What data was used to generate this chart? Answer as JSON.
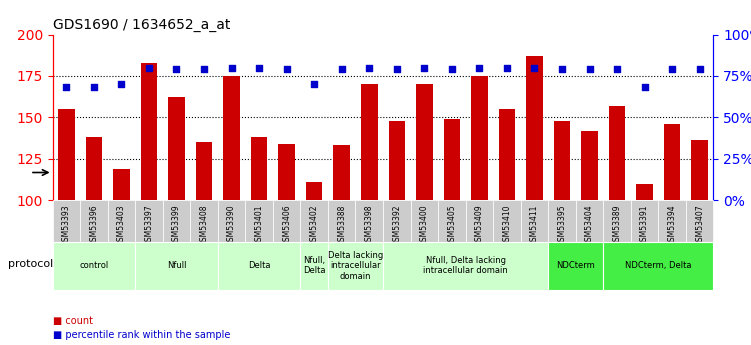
{
  "title": "GDS1690 / 1634652_a_at",
  "samples": [
    "GSM53393",
    "GSM53396",
    "GSM53403",
    "GSM53397",
    "GSM53399",
    "GSM53408",
    "GSM53390",
    "GSM53401",
    "GSM53406",
    "GSM53402",
    "GSM53388",
    "GSM53398",
    "GSM53392",
    "GSM53400",
    "GSM53405",
    "GSM53409",
    "GSM53410",
    "GSM53411",
    "GSM53395",
    "GSM53404",
    "GSM53389",
    "GSM53391",
    "GSM53394",
    "GSM53407"
  ],
  "counts": [
    155,
    138,
    119,
    183,
    162,
    135,
    175,
    138,
    134,
    111,
    133,
    170,
    148,
    170,
    149,
    175,
    155,
    187,
    148,
    142,
    157,
    110,
    146,
    136
  ],
  "percentiles": [
    68,
    68,
    70,
    80,
    79,
    79,
    80,
    80,
    79,
    70,
    79,
    80,
    79,
    80,
    79,
    80,
    80,
    80,
    79,
    79,
    79,
    68,
    79,
    79
  ],
  "bar_color": "#cc0000",
  "dot_color": "#0000cc",
  "ylim_left": [
    100,
    200
  ],
  "ylim_right": [
    0,
    100
  ],
  "yticks_left": [
    100,
    125,
    150,
    175,
    200
  ],
  "yticks_right": [
    0,
    25,
    50,
    75,
    100
  ],
  "groups": [
    {
      "label": "control",
      "start": 0,
      "end": 3,
      "color": "#ccffcc"
    },
    {
      "label": "Nfull",
      "start": 3,
      "end": 6,
      "color": "#ccffcc"
    },
    {
      "label": "Delta",
      "start": 6,
      "end": 9,
      "color": "#ccffcc"
    },
    {
      "label": "Nfull,\nDelta",
      "start": 9,
      "end": 10,
      "color": "#ccffcc"
    },
    {
      "label": "Delta lacking\nintracellular\ndomain",
      "start": 10,
      "end": 12,
      "color": "#ccffcc"
    },
    {
      "label": "Nfull, Delta lacking\nintracellular domain",
      "start": 12,
      "end": 18,
      "color": "#ccffcc"
    },
    {
      "label": "NDCterm",
      "start": 18,
      "end": 20,
      "color": "#44ee44"
    },
    {
      "label": "NDCterm, Delta",
      "start": 20,
      "end": 24,
      "color": "#44ee44"
    }
  ],
  "background_color": "#ffffff",
  "tick_label_bg": "#cccccc",
  "grid_color": "#000000",
  "percentile_scale": 2.0
}
